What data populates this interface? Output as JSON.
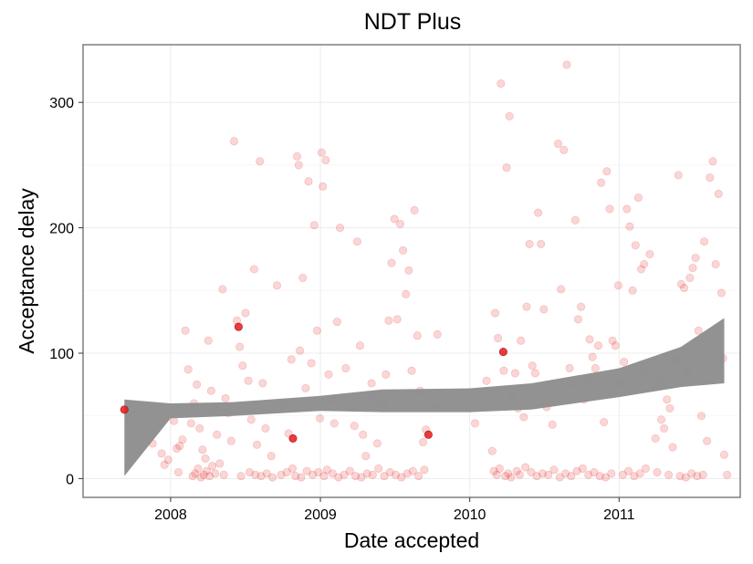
{
  "chart_data": {
    "type": "scatter",
    "title": "NDT Plus",
    "xlabel": "Date accepted",
    "ylabel": "Acceptance delay",
    "x_axis_type": "date",
    "xlim": [
      "2007-06-01",
      "2011-10-24"
    ],
    "ylim": [
      -15,
      346
    ],
    "x_ticks": [
      "2008-01-01",
      "2009-01-01",
      "2010-01-01",
      "2011-01-01"
    ],
    "x_tick_labels": [
      "2008",
      "2009",
      "2010",
      "2011"
    ],
    "y_ticks": [
      0,
      100,
      200,
      300
    ],
    "y_tick_labels": [
      "0",
      "100",
      "200",
      "300"
    ],
    "grid": true,
    "legend": "none",
    "colors": {
      "point": "#e41a1c",
      "ribbon": "#8c8c8c",
      "panel_border": "#7f7f7f",
      "grid": "#ececec"
    },
    "highlighted_points": [
      {
        "x": "2007-09-10",
        "y": 55
      },
      {
        "x": "2008-06-15",
        "y": 121
      },
      {
        "x": "2008-10-26",
        "y": 32
      },
      {
        "x": "2009-09-22",
        "y": 35
      },
      {
        "x": "2010-03-24",
        "y": 101
      }
    ],
    "points": [
      {
        "x": "2007-11-18",
        "y": 28
      },
      {
        "x": "2007-12-10",
        "y": 20
      },
      {
        "x": "2007-12-17",
        "y": 11
      },
      {
        "x": "2007-12-26",
        "y": 15
      },
      {
        "x": "2008-01-09",
        "y": 46
      },
      {
        "x": "2008-01-16",
        "y": 24
      },
      {
        "x": "2008-01-23",
        "y": 26
      },
      {
        "x": "2008-01-30",
        "y": 31
      },
      {
        "x": "2008-02-06",
        "y": 118
      },
      {
        "x": "2008-02-13",
        "y": 87
      },
      {
        "x": "2008-02-20",
        "y": 44
      },
      {
        "x": "2008-02-27",
        "y": 60
      },
      {
        "x": "2008-03-05",
        "y": 75
      },
      {
        "x": "2008-03-12",
        "y": 40
      },
      {
        "x": "2008-03-19",
        "y": 23
      },
      {
        "x": "2008-03-26",
        "y": 16
      },
      {
        "x": "2008-04-02",
        "y": 110
      },
      {
        "x": "2008-04-09",
        "y": 70
      },
      {
        "x": "2008-04-16",
        "y": 55
      },
      {
        "x": "2008-04-23",
        "y": 35
      },
      {
        "x": "2008-04-30",
        "y": 12
      },
      {
        "x": "2008-05-07",
        "y": 151
      },
      {
        "x": "2008-05-14",
        "y": 64
      },
      {
        "x": "2008-05-21",
        "y": 52
      },
      {
        "x": "2008-05-28",
        "y": 30
      },
      {
        "x": "2008-06-04",
        "y": 269
      },
      {
        "x": "2008-06-11",
        "y": 126
      },
      {
        "x": "2008-06-18",
        "y": 105
      },
      {
        "x": "2008-06-25",
        "y": 90
      },
      {
        "x": "2008-07-02",
        "y": 132
      },
      {
        "x": "2008-07-09",
        "y": 78
      },
      {
        "x": "2008-07-16",
        "y": 47
      },
      {
        "x": "2008-07-23",
        "y": 167
      },
      {
        "x": "2008-07-30",
        "y": 27
      },
      {
        "x": "2008-08-06",
        "y": 253
      },
      {
        "x": "2008-08-13",
        "y": 76
      },
      {
        "x": "2008-08-20",
        "y": 40
      },
      {
        "x": "2008-09-03",
        "y": 18
      },
      {
        "x": "2008-09-17",
        "y": 154
      },
      {
        "x": "2008-10-01",
        "y": 59
      },
      {
        "x": "2008-10-15",
        "y": 36
      },
      {
        "x": "2008-10-22",
        "y": 95
      },
      {
        "x": "2008-11-05",
        "y": 257
      },
      {
        "x": "2008-11-09",
        "y": 250
      },
      {
        "x": "2008-11-12",
        "y": 102
      },
      {
        "x": "2008-11-19",
        "y": 160
      },
      {
        "x": "2008-11-26",
        "y": 72
      },
      {
        "x": "2008-12-03",
        "y": 237
      },
      {
        "x": "2008-12-10",
        "y": 92
      },
      {
        "x": "2008-12-17",
        "y": 202
      },
      {
        "x": "2008-12-24",
        "y": 118
      },
      {
        "x": "2008-12-31",
        "y": 48
      },
      {
        "x": "2009-01-04",
        "y": 260
      },
      {
        "x": "2009-01-07",
        "y": 233
      },
      {
        "x": "2009-01-14",
        "y": 254
      },
      {
        "x": "2009-01-21",
        "y": 83
      },
      {
        "x": "2009-01-28",
        "y": 63
      },
      {
        "x": "2009-02-04",
        "y": 44
      },
      {
        "x": "2009-02-11",
        "y": 125
      },
      {
        "x": "2009-02-18",
        "y": 200
      },
      {
        "x": "2009-03-04",
        "y": 88
      },
      {
        "x": "2009-03-18",
        "y": 57
      },
      {
        "x": "2009-03-25",
        "y": 42
      },
      {
        "x": "2009-04-01",
        "y": 189
      },
      {
        "x": "2009-04-08",
        "y": 106
      },
      {
        "x": "2009-04-15",
        "y": 35
      },
      {
        "x": "2009-04-22",
        "y": 18
      },
      {
        "x": "2009-05-06",
        "y": 76
      },
      {
        "x": "2009-05-13",
        "y": 64
      },
      {
        "x": "2009-05-20",
        "y": 28
      },
      {
        "x": "2009-06-03",
        "y": 60
      },
      {
        "x": "2009-06-10",
        "y": 83
      },
      {
        "x": "2009-06-17",
        "y": 126
      },
      {
        "x": "2009-06-24",
        "y": 172
      },
      {
        "x": "2009-07-01",
        "y": 207
      },
      {
        "x": "2009-07-08",
        "y": 127
      },
      {
        "x": "2009-07-15",
        "y": 203
      },
      {
        "x": "2009-07-22",
        "y": 182
      },
      {
        "x": "2009-07-29",
        "y": 147
      },
      {
        "x": "2009-08-05",
        "y": 166
      },
      {
        "x": "2009-08-12",
        "y": 86
      },
      {
        "x": "2009-08-19",
        "y": 214
      },
      {
        "x": "2009-08-26",
        "y": 114
      },
      {
        "x": "2009-09-02",
        "y": 70
      },
      {
        "x": "2009-09-09",
        "y": 29
      },
      {
        "x": "2009-09-16",
        "y": 39
      },
      {
        "x": "2009-10-07",
        "y": 57
      },
      {
        "x": "2009-10-14",
        "y": 115
      },
      {
        "x": "2010-01-14",
        "y": 44
      },
      {
        "x": "2010-02-11",
        "y": 78
      },
      {
        "x": "2010-02-25",
        "y": 22
      },
      {
        "x": "2010-03-04",
        "y": 132
      },
      {
        "x": "2010-03-11",
        "y": 112
      },
      {
        "x": "2010-03-18",
        "y": 315
      },
      {
        "x": "2010-03-25",
        "y": 86
      },
      {
        "x": "2010-04-01",
        "y": 248
      },
      {
        "x": "2010-04-08",
        "y": 289
      },
      {
        "x": "2010-04-15",
        "y": 65
      },
      {
        "x": "2010-04-22",
        "y": 84
      },
      {
        "x": "2010-04-29",
        "y": 56
      },
      {
        "x": "2010-05-06",
        "y": 110
      },
      {
        "x": "2010-05-13",
        "y": 49
      },
      {
        "x": "2010-05-20",
        "y": 137
      },
      {
        "x": "2010-05-27",
        "y": 187
      },
      {
        "x": "2010-06-03",
        "y": 90
      },
      {
        "x": "2010-06-10",
        "y": 84
      },
      {
        "x": "2010-06-17",
        "y": 212
      },
      {
        "x": "2010-06-24",
        "y": 187
      },
      {
        "x": "2010-07-01",
        "y": 135
      },
      {
        "x": "2010-07-08",
        "y": 57
      },
      {
        "x": "2010-07-22",
        "y": 43
      },
      {
        "x": "2010-08-05",
        "y": 267
      },
      {
        "x": "2010-08-12",
        "y": 151
      },
      {
        "x": "2010-08-19",
        "y": 262
      },
      {
        "x": "2010-08-26",
        "y": 330
      },
      {
        "x": "2010-09-02",
        "y": 88
      },
      {
        "x": "2010-09-09",
        "y": 76
      },
      {
        "x": "2010-09-16",
        "y": 206
      },
      {
        "x": "2010-09-23",
        "y": 127
      },
      {
        "x": "2010-09-30",
        "y": 137
      },
      {
        "x": "2010-10-07",
        "y": 63
      },
      {
        "x": "2010-10-14",
        "y": 79
      },
      {
        "x": "2010-10-21",
        "y": 111
      },
      {
        "x": "2010-10-28",
        "y": 97
      },
      {
        "x": "2010-11-04",
        "y": 88
      },
      {
        "x": "2010-11-11",
        "y": 106
      },
      {
        "x": "2010-11-18",
        "y": 236
      },
      {
        "x": "2010-11-25",
        "y": 45
      },
      {
        "x": "2010-12-02",
        "y": 245
      },
      {
        "x": "2010-12-09",
        "y": 215
      },
      {
        "x": "2010-12-16",
        "y": 110
      },
      {
        "x": "2010-12-23",
        "y": 106
      },
      {
        "x": "2010-12-30",
        "y": 154
      },
      {
        "x": "2011-01-06",
        "y": 76
      },
      {
        "x": "2011-01-13",
        "y": 93
      },
      {
        "x": "2011-01-20",
        "y": 215
      },
      {
        "x": "2011-01-27",
        "y": 201
      },
      {
        "x": "2011-02-03",
        "y": 150
      },
      {
        "x": "2011-02-10",
        "y": 186
      },
      {
        "x": "2011-02-17",
        "y": 224
      },
      {
        "x": "2011-02-24",
        "y": 167
      },
      {
        "x": "2011-03-03",
        "y": 171
      },
      {
        "x": "2011-03-10",
        "y": 86
      },
      {
        "x": "2011-03-17",
        "y": 179
      },
      {
        "x": "2011-03-31",
        "y": 32
      },
      {
        "x": "2011-04-07",
        "y": 78
      },
      {
        "x": "2011-04-14",
        "y": 47
      },
      {
        "x": "2011-04-21",
        "y": 40
      },
      {
        "x": "2011-04-28",
        "y": 63
      },
      {
        "x": "2011-05-05",
        "y": 56
      },
      {
        "x": "2011-05-12",
        "y": 25
      },
      {
        "x": "2011-05-19",
        "y": 95
      },
      {
        "x": "2011-05-26",
        "y": 242
      },
      {
        "x": "2011-06-02",
        "y": 155
      },
      {
        "x": "2011-06-09",
        "y": 152
      },
      {
        "x": "2011-06-16",
        "y": 86
      },
      {
        "x": "2011-06-23",
        "y": 160
      },
      {
        "x": "2011-06-30",
        "y": 168
      },
      {
        "x": "2011-07-07",
        "y": 176
      },
      {
        "x": "2011-07-14",
        "y": 118
      },
      {
        "x": "2011-07-21",
        "y": 50
      },
      {
        "x": "2011-07-28",
        "y": 189
      },
      {
        "x": "2011-08-04",
        "y": 30
      },
      {
        "x": "2011-08-11",
        "y": 240
      },
      {
        "x": "2011-08-18",
        "y": 253
      },
      {
        "x": "2011-08-25",
        "y": 171
      },
      {
        "x": "2011-09-01",
        "y": 227
      },
      {
        "x": "2011-09-08",
        "y": 148
      },
      {
        "x": "2011-09-12",
        "y": 96
      },
      {
        "x": "2011-09-15",
        "y": 19
      },
      {
        "x": "2008-01-20",
        "y": 5
      },
      {
        "x": "2008-02-24",
        "y": 2
      },
      {
        "x": "2008-03-01",
        "y": 4
      },
      {
        "x": "2008-03-08",
        "y": 8
      },
      {
        "x": "2008-03-15",
        "y": 1
      },
      {
        "x": "2008-03-22",
        "y": 3
      },
      {
        "x": "2008-03-29",
        "y": 6
      },
      {
        "x": "2008-04-05",
        "y": 2
      },
      {
        "x": "2008-04-12",
        "y": 10
      },
      {
        "x": "2008-04-19",
        "y": 4
      },
      {
        "x": "2008-05-10",
        "y": 3
      },
      {
        "x": "2008-06-21",
        "y": 2
      },
      {
        "x": "2008-07-12",
        "y": 5
      },
      {
        "x": "2008-07-26",
        "y": 3
      },
      {
        "x": "2008-08-09",
        "y": 2
      },
      {
        "x": "2008-08-23",
        "y": 4
      },
      {
        "x": "2008-09-06",
        "y": 1
      },
      {
        "x": "2008-09-27",
        "y": 3
      },
      {
        "x": "2008-10-11",
        "y": 5
      },
      {
        "x": "2008-10-25",
        "y": 8
      },
      {
        "x": "2008-11-01",
        "y": 2
      },
      {
        "x": "2008-11-15",
        "y": 1
      },
      {
        "x": "2008-11-29",
        "y": 6
      },
      {
        "x": "2008-12-13",
        "y": 3
      },
      {
        "x": "2008-12-27",
        "y": 5
      },
      {
        "x": "2009-01-10",
        "y": 2
      },
      {
        "x": "2009-01-17",
        "y": 7
      },
      {
        "x": "2009-01-31",
        "y": 4
      },
      {
        "x": "2009-02-14",
        "y": 1
      },
      {
        "x": "2009-02-28",
        "y": 3
      },
      {
        "x": "2009-03-14",
        "y": 6
      },
      {
        "x": "2009-03-28",
        "y": 2
      },
      {
        "x": "2009-04-11",
        "y": 1
      },
      {
        "x": "2009-04-25",
        "y": 4
      },
      {
        "x": "2009-05-09",
        "y": 3
      },
      {
        "x": "2009-05-23",
        "y": 8
      },
      {
        "x": "2009-06-06",
        "y": 2
      },
      {
        "x": "2009-06-20",
        "y": 5
      },
      {
        "x": "2009-07-04",
        "y": 3
      },
      {
        "x": "2009-07-18",
        "y": 1
      },
      {
        "x": "2009-08-01",
        "y": 4
      },
      {
        "x": "2009-08-15",
        "y": 6
      },
      {
        "x": "2009-08-29",
        "y": 2
      },
      {
        "x": "2009-09-12",
        "y": 7
      },
      {
        "x": "2010-03-01",
        "y": 6
      },
      {
        "x": "2010-03-08",
        "y": 3
      },
      {
        "x": "2010-03-15",
        "y": 8
      },
      {
        "x": "2010-03-29",
        "y": 2
      },
      {
        "x": "2010-04-05",
        "y": 4
      },
      {
        "x": "2010-04-12",
        "y": 1
      },
      {
        "x": "2010-04-26",
        "y": 6
      },
      {
        "x": "2010-05-03",
        "y": 3
      },
      {
        "x": "2010-05-17",
        "y": 9
      },
      {
        "x": "2010-05-31",
        "y": 5
      },
      {
        "x": "2010-06-14",
        "y": 2
      },
      {
        "x": "2010-06-28",
        "y": 4
      },
      {
        "x": "2010-07-12",
        "y": 3
      },
      {
        "x": "2010-07-26",
        "y": 7
      },
      {
        "x": "2010-08-09",
        "y": 1
      },
      {
        "x": "2010-08-23",
        "y": 4
      },
      {
        "x": "2010-09-06",
        "y": 2
      },
      {
        "x": "2010-09-20",
        "y": 6
      },
      {
        "x": "2010-10-04",
        "y": 8
      },
      {
        "x": "2010-10-18",
        "y": 3
      },
      {
        "x": "2010-11-01",
        "y": 5
      },
      {
        "x": "2010-11-15",
        "y": 2
      },
      {
        "x": "2010-11-29",
        "y": 1
      },
      {
        "x": "2010-12-13",
        "y": 4
      },
      {
        "x": "2011-01-10",
        "y": 3
      },
      {
        "x": "2011-01-24",
        "y": 6
      },
      {
        "x": "2011-02-07",
        "y": 2
      },
      {
        "x": "2011-02-21",
        "y": 4
      },
      {
        "x": "2011-03-07",
        "y": 8
      },
      {
        "x": "2011-04-04",
        "y": 5
      },
      {
        "x": "2011-05-02",
        "y": 3
      },
      {
        "x": "2011-05-30",
        "y": 2
      },
      {
        "x": "2011-06-13",
        "y": 1
      },
      {
        "x": "2011-06-27",
        "y": 4
      },
      {
        "x": "2011-07-11",
        "y": 2
      },
      {
        "x": "2011-07-25",
        "y": 3
      },
      {
        "x": "2011-09-22",
        "y": 3
      }
    ],
    "ribbon": {
      "x": [
        "2007-09-10",
        "2008-01-01",
        "2008-06-01",
        "2009-01-01",
        "2009-06-01",
        "2010-01-01",
        "2010-06-01",
        "2011-01-01",
        "2011-06-01",
        "2011-09-15"
      ],
      "upper": [
        63,
        60,
        61,
        66,
        71,
        72,
        76,
        88,
        105,
        128
      ],
      "lower": [
        2,
        48,
        50,
        54,
        53,
        53,
        55,
        65,
        73,
        76
      ]
    }
  }
}
